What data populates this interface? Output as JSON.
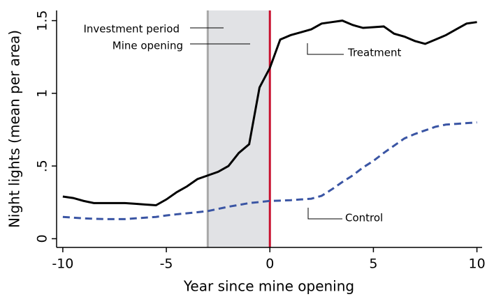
{
  "chart_data": {
    "type": "line",
    "x": [
      -10,
      -9.5,
      -9,
      -8.5,
      -8,
      -7.5,
      -7,
      -6.5,
      -6,
      -5.5,
      -5,
      -4.5,
      -4,
      -3.5,
      -3,
      -2.5,
      -2,
      -1.5,
      -1,
      -0.5,
      0,
      0.5,
      1,
      1.5,
      2,
      2.5,
      3,
      3.5,
      4,
      4.5,
      5,
      5.5,
      6,
      6.5,
      7,
      7.5,
      8,
      8.5,
      9,
      9.5,
      10
    ],
    "series": [
      {
        "name": "Treatment",
        "color": "#000000",
        "dash": false,
        "values": [
          0.29,
          0.28,
          0.26,
          0.245,
          0.245,
          0.245,
          0.245,
          0.24,
          0.235,
          0.23,
          0.27,
          0.32,
          0.36,
          0.41,
          0.435,
          0.46,
          0.5,
          0.59,
          0.65,
          1.04,
          1.175,
          1.37,
          1.4,
          1.42,
          1.44,
          1.48,
          1.49,
          1.5,
          1.47,
          1.45,
          1.455,
          1.46,
          1.41,
          1.39,
          1.36,
          1.34,
          1.37,
          1.4,
          1.44,
          1.48,
          1.49
        ]
      },
      {
        "name": "Control",
        "color": "#3a55a4",
        "dash": true,
        "values": [
          0.15,
          0.145,
          0.14,
          0.137,
          0.135,
          0.135,
          0.135,
          0.14,
          0.145,
          0.15,
          0.16,
          0.168,
          0.175,
          0.182,
          0.19,
          0.205,
          0.22,
          0.232,
          0.245,
          0.252,
          0.26,
          0.262,
          0.265,
          0.27,
          0.275,
          0.295,
          0.34,
          0.39,
          0.435,
          0.49,
          0.535,
          0.59,
          0.64,
          0.69,
          0.72,
          0.745,
          0.77,
          0.785,
          0.79,
          0.795,
          0.8
        ]
      }
    ],
    "xlabel": "Year since mine opening",
    "ylabel": "Night lights (mean per area)",
    "xlim": [
      -10.3,
      10.25
    ],
    "ylim": [
      -0.06,
      1.57
    ],
    "xticks": [
      -10,
      -5,
      0,
      5,
      10
    ],
    "yticks": [
      0,
      {
        "value": 0.5,
        "label": ".5"
      },
      1,
      1.5
    ],
    "shaded_region": [
      -3,
      0
    ],
    "vline": 0,
    "annotations": [
      "Investment period",
      "Mine opening"
    ]
  }
}
